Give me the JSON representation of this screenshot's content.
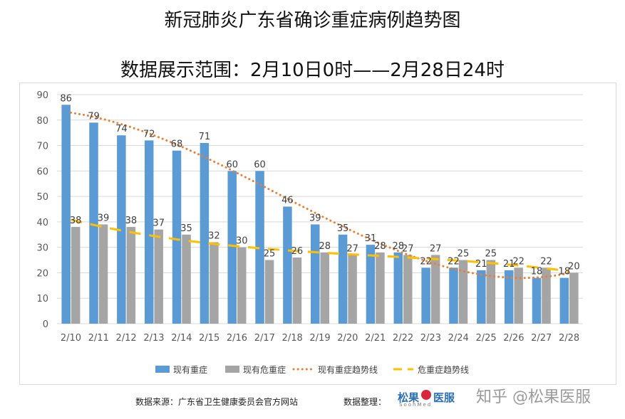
{
  "titles": {
    "main": "新冠肺炎广东省确诊重症病例趋势图",
    "range": "数据展示范围：2月10日0时——2月28日24时"
  },
  "footer": {
    "source": "数据来源：广东省卫生健康委员会官方网站",
    "organizer": "数据整理：",
    "logo_left": "松果",
    "logo_right": "医服",
    "logo_sub": "SoohMed",
    "watermark": "知乎 @松果医服"
  },
  "colors": {
    "blue": "#5b9bd5",
    "gray": "#a5a5a5",
    "orange": "#ed7d31",
    "yellow": "#ffc000"
  },
  "chart_data": {
    "type": "bar",
    "categories": [
      "2/10",
      "2/11",
      "2/12",
      "2/13",
      "2/14",
      "2/15",
      "2/16",
      "2/17",
      "2/18",
      "2/19",
      "2/20",
      "2/21",
      "2/22",
      "2/23",
      "2/24",
      "2/25",
      "2/26",
      "2/27",
      "2/28"
    ],
    "series": [
      {
        "name": "现有重症",
        "values": [
          86,
          79,
          74,
          72,
          68,
          71,
          60,
          60,
          46,
          39,
          35,
          31,
          28,
          22,
          22,
          21,
          21,
          18,
          18
        ]
      },
      {
        "name": "现有危重症",
        "values": [
          38,
          39,
          38,
          37,
          35,
          32,
          30,
          25,
          26,
          28,
          27,
          28,
          27,
          27,
          25,
          25,
          22,
          22,
          20
        ]
      }
    ],
    "trendlines": [
      {
        "name": "现有重症趋势线",
        "of": "现有重症",
        "style": "dotted"
      },
      {
        "name": "危重症趋势线",
        "of": "现有危重症",
        "style": "dashed"
      }
    ],
    "ylim": [
      0,
      90
    ],
    "yticks": [
      0,
      10,
      20,
      30,
      40,
      50,
      60,
      70,
      80,
      90
    ],
    "grid": true,
    "legend": "bottom"
  }
}
